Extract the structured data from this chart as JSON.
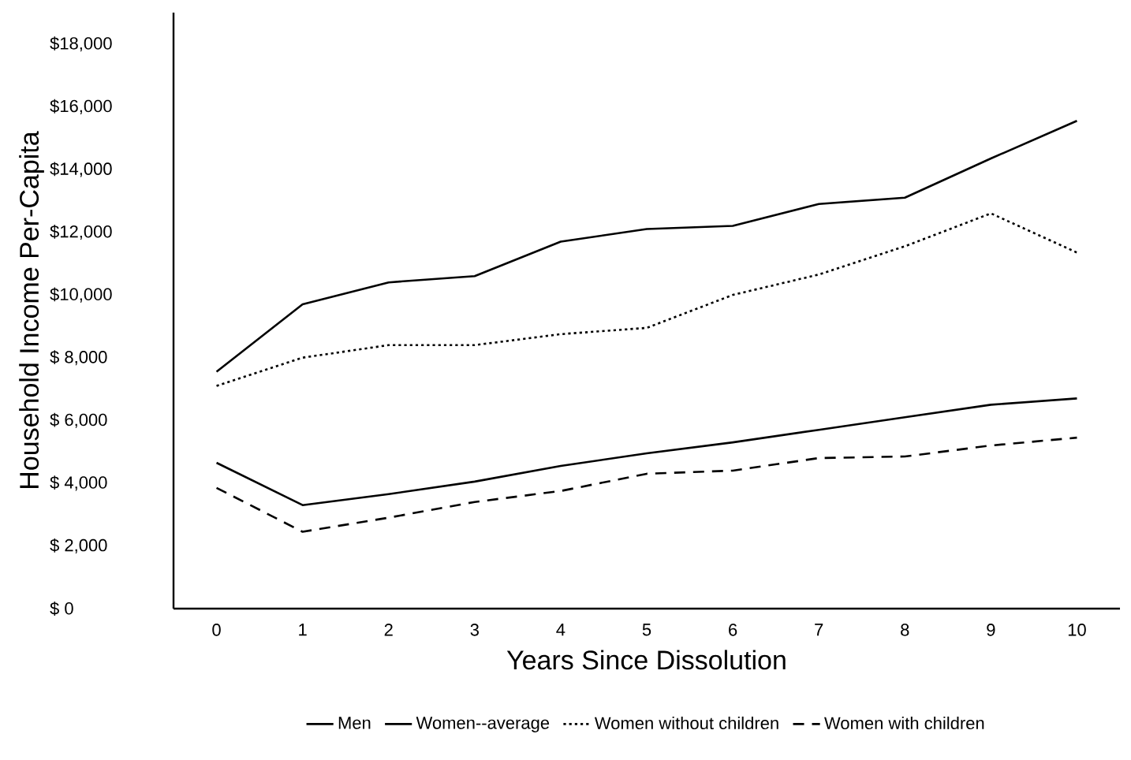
{
  "chart_data": {
    "type": "line",
    "xlabel": "Years Since Dissolution",
    "ylabel": "Household Income Per-Capita",
    "x": [
      0,
      1,
      2,
      3,
      4,
      5,
      6,
      7,
      8,
      9,
      10
    ],
    "series": [
      {
        "name": "Men",
        "color": "#000000",
        "line_style": "solid",
        "values": [
          7550,
          9700,
          10400,
          10600,
          11700,
          12100,
          12200,
          12900,
          13100,
          14350,
          15550
        ]
      },
      {
        "name": "Women--average",
        "color": "#000000",
        "line_style": "solid",
        "values": [
          4650,
          3300,
          3650,
          4050,
          4550,
          4950,
          5300,
          5700,
          6100,
          6500,
          6700
        ]
      },
      {
        "name": "Women without children",
        "color": "#000000",
        "line_style": "dotted",
        "values": [
          7100,
          8000,
          8400,
          8400,
          8750,
          8950,
          10000,
          10650,
          11550,
          12600,
          11350
        ]
      },
      {
        "name": "Women with children",
        "color": "#000000",
        "line_style": "dashed",
        "values": [
          3850,
          2450,
          2900,
          3400,
          3750,
          4300,
          4400,
          4800,
          4850,
          5200,
          5450
        ]
      }
    ],
    "xlim": [
      -0.5,
      10.5
    ],
    "ylim": [
      0,
      19000
    ],
    "xticks": [
      0,
      1,
      2,
      3,
      4,
      5,
      6,
      7,
      8,
      9,
      10
    ],
    "yticks": [
      {
        "value": 0,
        "label": "$ 0"
      },
      {
        "value": 2000,
        "label": "$ 2,000"
      },
      {
        "value": 4000,
        "label": "$ 4,000"
      },
      {
        "value": 6000,
        "label": "$ 6,000"
      },
      {
        "value": 8000,
        "label": "$ 8,000"
      },
      {
        "value": 10000,
        "label": "$10,000"
      },
      {
        "value": 12000,
        "label": "$12,000"
      },
      {
        "value": 14000,
        "label": "$14,000"
      },
      {
        "value": 16000,
        "label": "$16,000"
      },
      {
        "value": 18000,
        "label": "$18,000"
      }
    ],
    "grid": false,
    "legend": "bottom",
    "marker": "none"
  }
}
